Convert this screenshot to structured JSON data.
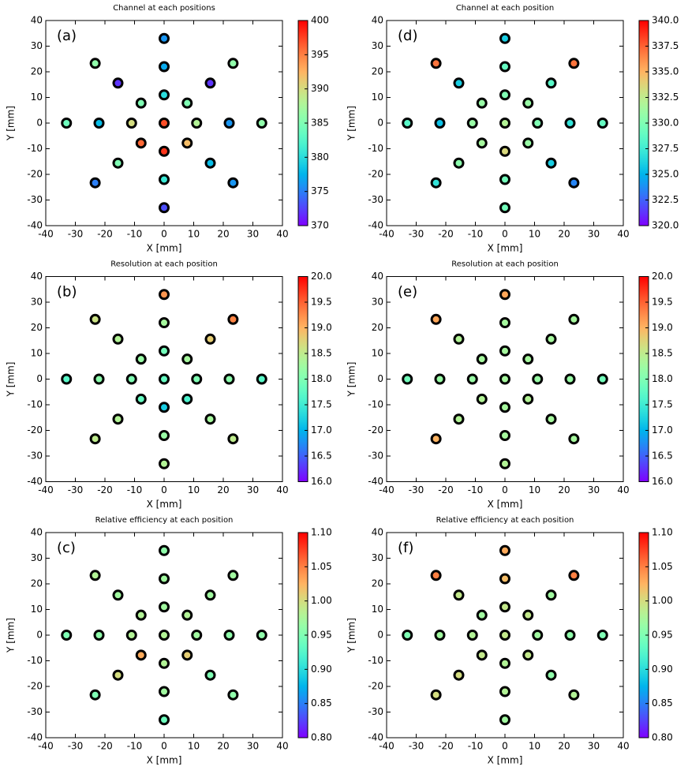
{
  "chart_data": [
    {
      "type": "scatter",
      "title": "Channel at each positions",
      "panel_label": "(a)",
      "xlabel": "X [mm]",
      "ylabel": "Y [mm]",
      "x": [
        0,
        11,
        7.8,
        0,
        -7.8,
        -11,
        -7.8,
        0,
        7.8,
        22,
        15.6,
        0,
        -15.6,
        -22,
        -15.6,
        0,
        15.6,
        33,
        23.3,
        0,
        -23.3,
        -33,
        -23.3,
        0,
        23.3
      ],
      "y": [
        0,
        0,
        7.8,
        11,
        7.8,
        0,
        -7.8,
        -11,
        -7.8,
        0,
        15.6,
        22,
        15.6,
        0,
        -15.6,
        -22,
        -15.6,
        0,
        23.3,
        33,
        23.3,
        0,
        -23.3,
        -33,
        -23.3
      ],
      "values": [
        397,
        388,
        385,
        380,
        385,
        390,
        396,
        398,
        392,
        376,
        372,
        377,
        372,
        378,
        385,
        381,
        378,
        386,
        386,
        376,
        386,
        384,
        375,
        373,
        376
      ],
      "cmap": "rainbow",
      "clim": [
        370,
        400
      ],
      "cticks": [
        370,
        375,
        380,
        385,
        390,
        395,
        400
      ],
      "xlim": [
        -40,
        40
      ],
      "ylim": [
        -40,
        40
      ],
      "xticks": [
        -40,
        -30,
        -20,
        -10,
        0,
        10,
        20,
        30,
        40
      ],
      "yticks": [
        -40,
        -30,
        -20,
        -10,
        0,
        10,
        20,
        30,
        40
      ]
    },
    {
      "type": "scatter",
      "title": "Channel at each position",
      "panel_label": "(d)",
      "xlabel": "X [mm]",
      "ylabel": "Y [mm]",
      "x": [
        0,
        11,
        7.8,
        0,
        -7.8,
        -11,
        -7.8,
        0,
        7.8,
        22,
        15.6,
        0,
        -15.6,
        -22,
        -15.6,
        0,
        15.6,
        33,
        23.3,
        0,
        -23.3,
        -33,
        -23.3,
        0,
        23.3
      ],
      "y": [
        0,
        0,
        7.8,
        11,
        7.8,
        0,
        -7.8,
        -11,
        -7.8,
        0,
        15.6,
        22,
        15.6,
        0,
        -15.6,
        -22,
        -15.6,
        0,
        23.3,
        33,
        23.3,
        0,
        -23.3,
        -33,
        -23.3
      ],
      "values": [
        332,
        330,
        331,
        330,
        331,
        331,
        331.5,
        333.5,
        331,
        327,
        328.5,
        329,
        326,
        325.5,
        330.5,
        329.5,
        326,
        329,
        337,
        326,
        337,
        328.5,
        327,
        329.5,
        323.5
      ],
      "cmap": "rainbow",
      "clim": [
        320,
        340
      ],
      "cticks": [
        {
          "value": 320,
          "label": "320.0"
        },
        322.5,
        {
          "value": 325,
          "label": "325.0"
        },
        327.5,
        {
          "value": 330,
          "label": "330.0"
        },
        332.5,
        {
          "value": 335,
          "label": "335.0"
        },
        337.5,
        {
          "value": 340,
          "label": "340.0"
        }
      ],
      "xlim": [
        -40,
        40
      ],
      "ylim": [
        -40,
        40
      ],
      "xticks": [
        -40,
        -30,
        -20,
        -10,
        0,
        10,
        20,
        30,
        40
      ],
      "yticks": [
        -40,
        -30,
        -20,
        -10,
        0,
        10,
        20,
        30,
        40
      ]
    },
    {
      "type": "scatter",
      "title": "Resolution at each position",
      "panel_label": "(b)",
      "xlabel": "X [mm]",
      "ylabel": "Y [mm]",
      "x": [
        0,
        11,
        7.8,
        0,
        -7.8,
        -11,
        -7.8,
        0,
        7.8,
        22,
        15.6,
        0,
        -15.6,
        -22,
        -15.6,
        0,
        15.6,
        33,
        23.3,
        0,
        -23.3,
        -33,
        -23.3,
        0,
        23.3
      ],
      "y": [
        0,
        0,
        7.8,
        11,
        7.8,
        0,
        -7.8,
        -11,
        -7.8,
        0,
        15.6,
        22,
        15.6,
        0,
        -15.6,
        -22,
        -15.6,
        0,
        23.3,
        33,
        23.3,
        0,
        -23.3,
        -33,
        -23.3
      ],
      "values": [
        17.8,
        18,
        18.3,
        17.9,
        18.2,
        18,
        17.8,
        17.2,
        17.6,
        18.1,
        18.8,
        18.3,
        18.4,
        18.1,
        18.4,
        18.2,
        18.3,
        17.7,
        19.3,
        19.2,
        18.6,
        17.7,
        18.5,
        18.4,
        18.5
      ],
      "cmap": "rainbow",
      "clim": [
        16,
        20
      ],
      "cticks": [
        {
          "value": 16,
          "label": "16.0"
        },
        16.5,
        {
          "value": 17,
          "label": "17.0"
        },
        17.5,
        {
          "value": 18,
          "label": "18.0"
        },
        18.5,
        {
          "value": 19,
          "label": "19.0"
        },
        19.5,
        {
          "value": 20,
          "label": "20.0"
        }
      ],
      "xlim": [
        -40,
        40
      ],
      "ylim": [
        -40,
        40
      ],
      "xticks": [
        -40,
        -30,
        -20,
        -10,
        0,
        10,
        20,
        30,
        40
      ],
      "yticks": [
        -40,
        -30,
        -20,
        -10,
        0,
        10,
        20,
        30,
        40
      ]
    },
    {
      "type": "scatter",
      "title": "Resolution at each position",
      "panel_label": "(e)",
      "xlabel": "X [mm]",
      "ylabel": "Y [mm]",
      "x": [
        0,
        11,
        7.8,
        0,
        -7.8,
        -11,
        -7.8,
        0,
        7.8,
        22,
        15.6,
        0,
        -15.6,
        -22,
        -15.6,
        0,
        15.6,
        33,
        23.3,
        0,
        -23.3,
        -33,
        -23.3,
        0,
        23.3
      ],
      "y": [
        0,
        0,
        7.8,
        11,
        7.8,
        0,
        -7.8,
        -11,
        -7.8,
        0,
        15.6,
        22,
        15.6,
        0,
        -15.6,
        -22,
        -15.6,
        0,
        23.3,
        33,
        23.3,
        0,
        -23.3,
        -33,
        -23.3
      ],
      "values": [
        18.3,
        18.2,
        18.3,
        18.3,
        18.3,
        18.2,
        18.4,
        18.3,
        18.4,
        18.2,
        18.3,
        18.3,
        18.4,
        18.2,
        18.4,
        18.3,
        18.3,
        17.9,
        18.3,
        19.1,
        19.1,
        17.9,
        19,
        18.4,
        18.3
      ],
      "cmap": "rainbow",
      "clim": [
        16,
        20
      ],
      "cticks": [
        {
          "value": 16,
          "label": "16.0"
        },
        16.5,
        {
          "value": 17,
          "label": "17.0"
        },
        17.5,
        {
          "value": 18,
          "label": "18.0"
        },
        18.5,
        {
          "value": 19,
          "label": "19.0"
        },
        19.5,
        {
          "value": 20,
          "label": "20.0"
        }
      ],
      "xlim": [
        -40,
        40
      ],
      "ylim": [
        -40,
        40
      ],
      "xticks": [
        -40,
        -30,
        -20,
        -10,
        0,
        10,
        20,
        30,
        40
      ],
      "yticks": [
        -40,
        -30,
        -20,
        -10,
        0,
        10,
        20,
        30,
        40
      ]
    },
    {
      "type": "scatter",
      "title": "Relative efficiency at each position",
      "panel_label": "(c)",
      "xlabel": "X [mm]",
      "ylabel": "Y [mm]",
      "x": [
        0,
        11,
        7.8,
        0,
        -7.8,
        -11,
        -7.8,
        0,
        7.8,
        22,
        15.6,
        0,
        -15.6,
        -22,
        -15.6,
        0,
        15.6,
        33,
        23.3,
        0,
        -23.3,
        -33,
        -23.3,
        0,
        23.3
      ],
      "y": [
        0,
        0,
        7.8,
        11,
        7.8,
        0,
        -7.8,
        -11,
        -7.8,
        0,
        15.6,
        22,
        15.6,
        0,
        -15.6,
        -22,
        -15.6,
        0,
        23.3,
        33,
        23.3,
        0,
        -23.3,
        -33,
        -23.3
      ],
      "values": [
        0.98,
        0.97,
        0.98,
        0.97,
        0.98,
        0.98,
        1.03,
        0.98,
        1.01,
        0.96,
        0.97,
        0.97,
        0.97,
        0.96,
        1.0,
        0.97,
        0.95,
        0.96,
        0.97,
        0.96,
        0.98,
        0.95,
        0.95,
        0.94,
        0.96
      ],
      "cmap": "rainbow",
      "clim": [
        0.8,
        1.1
      ],
      "cticks": [
        {
          "value": 0.8,
          "label": "0.80"
        },
        0.85,
        {
          "value": 0.9,
          "label": "0.90"
        },
        0.95,
        {
          "value": 1,
          "label": "1.00"
        },
        1.05,
        {
          "value": 1.1,
          "label": "1.10"
        }
      ],
      "xlim": [
        -40,
        40
      ],
      "ylim": [
        -40,
        40
      ],
      "xticks": [
        -40,
        -30,
        -20,
        -10,
        0,
        10,
        20,
        30,
        40
      ],
      "yticks": [
        -40,
        -30,
        -20,
        -10,
        0,
        10,
        20,
        30,
        40
      ]
    },
    {
      "type": "scatter",
      "title": "Relative efficiency at each position",
      "panel_label": "(f)",
      "xlabel": "X [mm]",
      "ylabel": "Y [mm]",
      "x": [
        0,
        11,
        7.8,
        0,
        -7.8,
        -11,
        -7.8,
        0,
        7.8,
        22,
        15.6,
        0,
        -15.6,
        -22,
        -15.6,
        0,
        15.6,
        33,
        23.3,
        0,
        -23.3,
        -33,
        -23.3,
        0,
        23.3
      ],
      "y": [
        0,
        0,
        7.8,
        11,
        7.8,
        0,
        -7.8,
        -11,
        -7.8,
        0,
        15.6,
        22,
        15.6,
        0,
        -15.6,
        -22,
        -15.6,
        0,
        23.3,
        33,
        23.3,
        0,
        -23.3,
        -33,
        -23.3
      ],
      "values": [
        0.99,
        0.97,
        0.99,
        0.99,
        0.97,
        0.98,
        0.99,
        0.98,
        0.99,
        0.96,
        0.97,
        1.02,
        0.99,
        0.97,
        1.0,
        0.98,
        0.96,
        0.95,
        1.05,
        1.03,
        1.05,
        0.95,
        1.0,
        0.97,
        0.98
      ],
      "cmap": "rainbow",
      "clim": [
        0.8,
        1.1
      ],
      "cticks": [
        {
          "value": 0.8,
          "label": "0.80"
        },
        0.85,
        {
          "value": 0.9,
          "label": "0.90"
        },
        0.95,
        {
          "value": 1,
          "label": "1.00"
        },
        1.05,
        {
          "value": 1.1,
          "label": "1.10"
        }
      ],
      "xlim": [
        -40,
        40
      ],
      "ylim": [
        -40,
        40
      ],
      "xticks": [
        -40,
        -30,
        -20,
        -10,
        0,
        10,
        20,
        30,
        40
      ],
      "yticks": [
        -40,
        -30,
        -20,
        -10,
        0,
        10,
        20,
        30,
        40
      ]
    }
  ]
}
